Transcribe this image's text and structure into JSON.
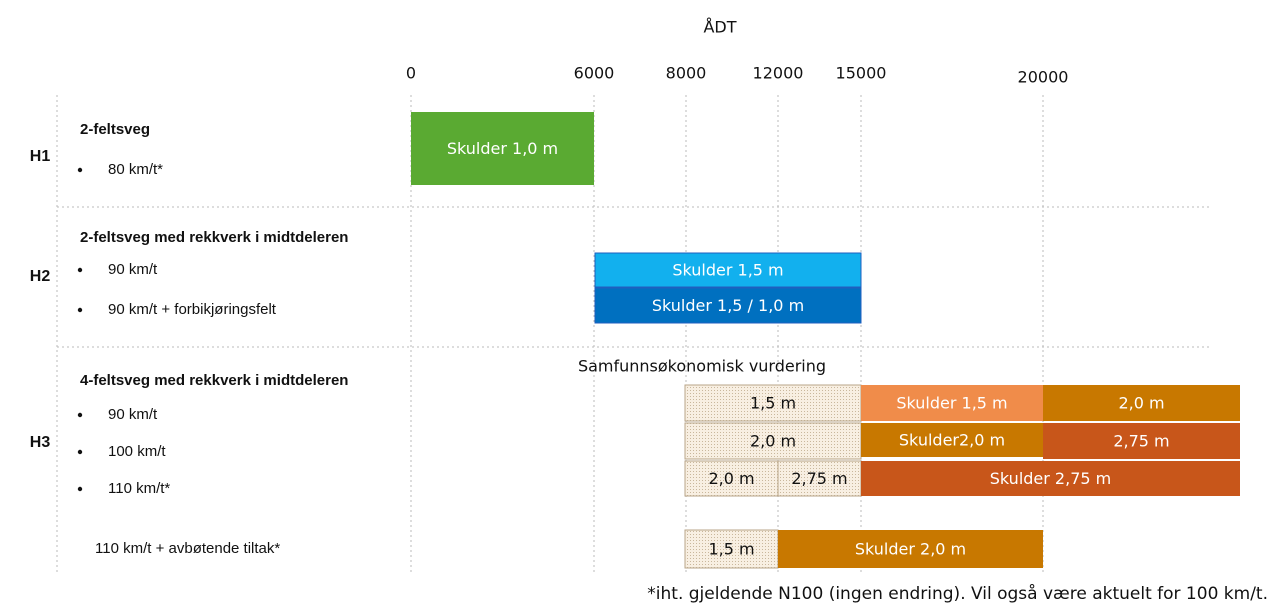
{
  "axis": {
    "title": "ÅDT",
    "ticks": [
      "0",
      "6000",
      "8000",
      "12000",
      "15000",
      "20000"
    ]
  },
  "rows": [
    {
      "label": "H1",
      "title": "2-feltsveg",
      "items": [
        "80 km/t*"
      ]
    },
    {
      "label": "H2",
      "title": "2-feltsveg med rekkverk i midtdeleren",
      "items": [
        "90 km/t",
        "90 km/t + forbikjøringsfelt"
      ]
    },
    {
      "label": "H3",
      "title": "4-feltsveg med rekkverk i midtdeleren",
      "items": [
        "90 km/t",
        "100 km/t",
        "110 km/t*"
      ],
      "extra": "110 km/t + avbøtende tiltak*"
    }
  ],
  "annotation": "Samfunnsøkonomisk vurdering",
  "boxes": [
    "Skulder 1,0 m",
    "Skulder 1,5 m",
    "Skulder 1,5 / 1,0 m",
    "1,5 m",
    "Skulder 1,5 m",
    "2,0 m",
    "2,0 m",
    "Skulder2,0 m",
    "2,75 m",
    "2,0 m",
    "2,75 m",
    "Skulder 2,75 m",
    "1,5 m",
    "Skulder 2,0 m"
  ],
  "footnote": "*iht. gjeldende N100 (ingen endring). Vil også være aktuelt for 100 km/t."
}
